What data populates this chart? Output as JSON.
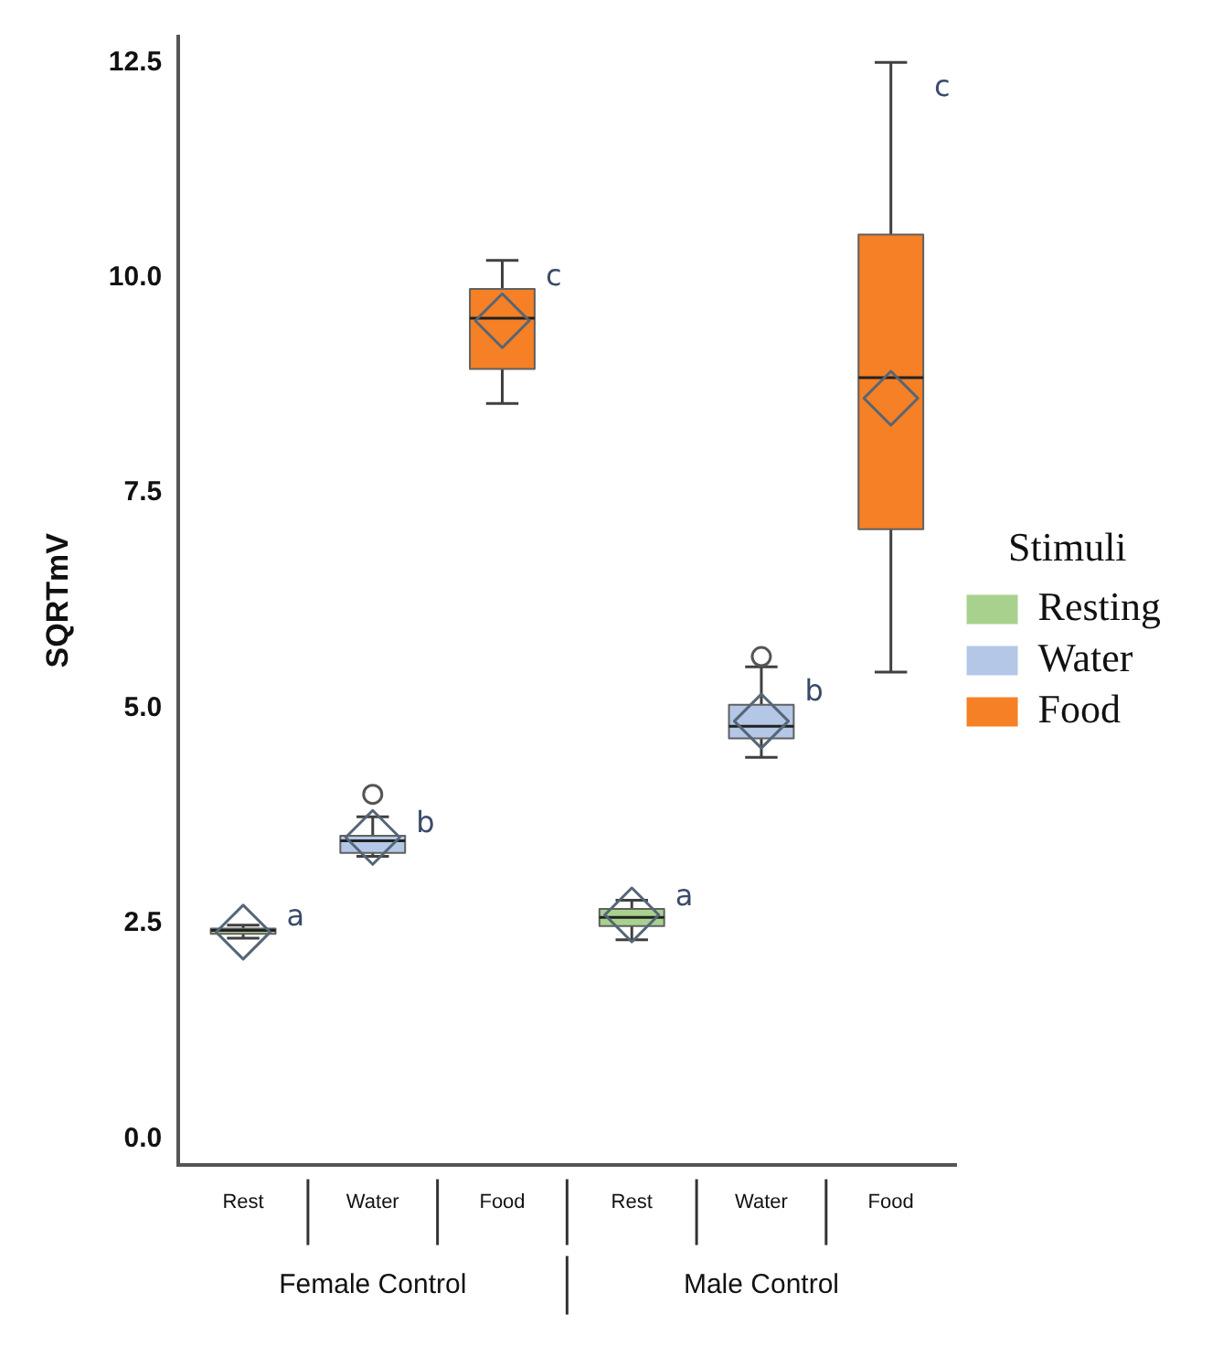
{
  "chart_data": {
    "type": "box",
    "categories": [
      "Rest",
      "Water",
      "Food",
      "Rest",
      "Water",
      "Food"
    ],
    "ylabel": "SQRTmV",
    "ylim": [
      -0.3,
      12.8
    ],
    "yticks": [
      {
        "value": 0,
        "label": "0.0"
      },
      {
        "value": 2.5,
        "label": "2.5"
      },
      {
        "value": 5,
        "label": "5.0"
      },
      {
        "value": 7.5,
        "label": "7.5"
      },
      {
        "value": 10,
        "label": "10.0"
      },
      {
        "value": 12.5,
        "label": "12.5"
      }
    ],
    "grid": false,
    "legend": "right",
    "legend_title": "Stimuli",
    "annotations": [
      "Female Control",
      "Male Control"
    ],
    "series": [
      {
        "name": "Resting",
        "color": "#a9d18e",
        "value_labels": [
          "a",
          null,
          null,
          "a",
          null,
          null
        ],
        "boxes": [
          {
            "low": 2.33,
            "q1": 2.38,
            "median": 2.42,
            "q3": 2.44,
            "high": 2.48,
            "mean": 2.4
          },
          null,
          null,
          {
            "low": 2.31,
            "q1": 2.47,
            "median": 2.57,
            "q3": 2.67,
            "high": 2.77,
            "mean": 2.6
          },
          null,
          null
        ]
      },
      {
        "name": "Water",
        "color": "#b4c7e7",
        "value_labels": [
          null,
          "b",
          null,
          null,
          "b",
          null
        ],
        "boxes": [
          null,
          {
            "low": 3.28,
            "q1": 3.32,
            "median": 3.46,
            "q3": 3.52,
            "high": 3.74,
            "mean": 3.5,
            "outliers": [
              4.0
            ]
          },
          null,
          null,
          {
            "low": 4.43,
            "q1": 4.65,
            "median": 4.79,
            "q3": 5.04,
            "high": 5.48,
            "mean": 4.85,
            "outliers": [
              5.6
            ]
          },
          null
        ]
      },
      {
        "name": "Food",
        "color": "#f58025",
        "value_labels": [
          null,
          null,
          "c",
          null,
          null,
          "c"
        ],
        "boxes": [
          null,
          null,
          {
            "low": 8.54,
            "q1": 8.94,
            "median": 9.53,
            "q3": 9.87,
            "high": 10.2,
            "mean": 9.5
          },
          null,
          null,
          {
            "low": 5.42,
            "q1": 7.08,
            "median": 8.84,
            "q3": 10.5,
            "high": 12.5,
            "mean": 8.6
          }
        ]
      }
    ]
  }
}
